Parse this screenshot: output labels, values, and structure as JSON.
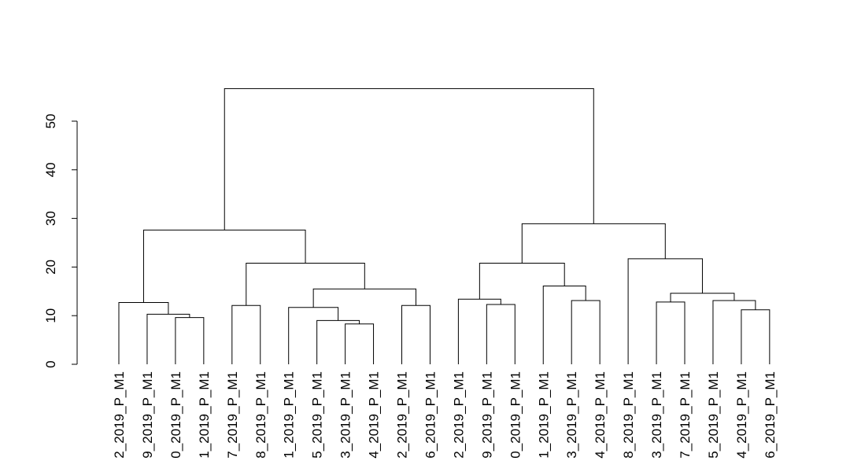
{
  "chart_data": {
    "type": "dendrogram",
    "title": "",
    "xlabel": "",
    "ylabel": "",
    "ylim": [
      0,
      55
    ],
    "y_ticks": [
      0,
      10,
      20,
      30,
      40,
      50
    ],
    "grid": false,
    "colors": {
      "line": "#000000",
      "background": "#ffffff"
    },
    "leaves": [
      "2_2019_P_M1",
      "9_2019_P_M1",
      "0_2019_P_M1",
      "1_2019_P_M1",
      "7_2019_P_M1",
      "8_2019_P_M1",
      "1_2019_P_M1",
      "5_2019_P_M1",
      "3_2019_P_M1",
      "4_2019_P_M1",
      "2_2019_P_M1",
      "6_2019_P_M1",
      "2_2019_P_M1",
      "9_2019_P_M1",
      "0_2019_P_M1",
      "1_2019_P_M1",
      "3_2019_P_M1",
      "4_2019_P_M1",
      "8_2019_P_M1",
      "3_2019_P_M1",
      "7_2019_P_M1",
      "5_2019_P_M1",
      "4_2019_P_M1",
      "6_2019_P_M1"
    ],
    "merges": [
      [
        -3,
        -4,
        9.6
      ],
      [
        -2,
        1,
        10.3
      ],
      [
        -1,
        2,
        12.7
      ],
      [
        -5,
        -6,
        12.1
      ],
      [
        -9,
        -10,
        8.3
      ],
      [
        -8,
        5,
        9.0
      ],
      [
        -7,
        6,
        11.7
      ],
      [
        -11,
        -12,
        12.1
      ],
      [
        7,
        8,
        15.5
      ],
      [
        4,
        9,
        20.8
      ],
      [
        3,
        10,
        27.6
      ],
      [
        -14,
        -15,
        12.3
      ],
      [
        -13,
        12,
        13.4
      ],
      [
        -17,
        -18,
        13.1
      ],
      [
        -16,
        14,
        16.1
      ],
      [
        13,
        15,
        20.8
      ],
      [
        -23,
        -24,
        11.2
      ],
      [
        -22,
        17,
        13.1
      ],
      [
        -20,
        -21,
        12.8
      ],
      [
        19,
        18,
        14.6
      ],
      [
        -19,
        20,
        21.7
      ],
      [
        16,
        21,
        28.9
      ],
      [
        11,
        22,
        56.7
      ]
    ]
  }
}
